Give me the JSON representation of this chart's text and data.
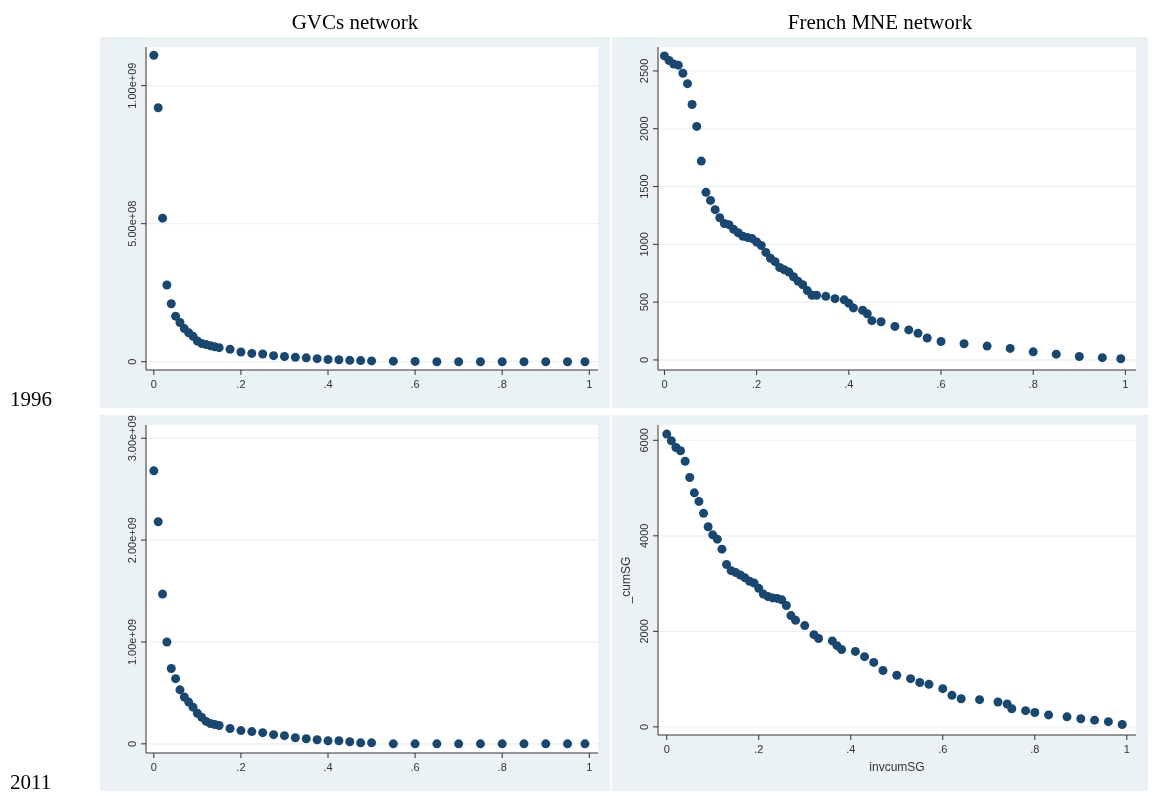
{
  "chart_data": [
    {
      "type": "scatter",
      "title": "GVCs network",
      "annotations": [
        "1996"
      ],
      "color": "#1a476f",
      "marker": "circle",
      "grid": "y",
      "xlim": [
        -0.018,
        1.02
      ],
      "ylim": [
        -30000000,
        1140000000
      ],
      "xticks": [
        {
          "value": 0,
          "label": "0"
        },
        {
          "value": 0.2,
          "label": ".2"
        },
        {
          "value": 0.4,
          "label": ".4"
        },
        {
          "value": 0.6,
          "label": ".6"
        },
        {
          "value": 0.8,
          "label": ".8"
        },
        {
          "value": 1,
          "label": "1"
        }
      ],
      "yticks": [
        {
          "value": 0,
          "label": "0"
        },
        {
          "value": 500000000,
          "label": "5.00e+08"
        },
        {
          "value": 1000000000,
          "label": "1.00e+09"
        }
      ],
      "x": [
        0,
        0.01,
        0.02,
        0.03,
        0.04,
        0.05,
        0.06,
        0.07,
        0.08,
        0.09,
        0.1,
        0.11,
        0.12,
        0.13,
        0.14,
        0.15,
        0.175,
        0.2,
        0.225,
        0.25,
        0.275,
        0.3,
        0.325,
        0.35,
        0.375,
        0.4,
        0.425,
        0.45,
        0.475,
        0.5,
        0.55,
        0.6,
        0.65,
        0.7,
        0.75,
        0.8,
        0.85,
        0.9,
        0.95,
        0.99
      ],
      "values": [
        1110000000,
        920000000,
        520000000,
        278000000,
        210000000,
        165000000,
        142000000,
        120000000,
        105000000,
        92000000,
        75000000,
        66000000,
        62000000,
        58000000,
        54000000,
        51000000,
        45000000,
        35000000,
        30000000,
        28000000,
        22000000,
        19000000,
        16000000,
        14000000,
        11000000,
        8000000,
        7000000,
        5000000,
        4000000,
        3000000,
        2000000,
        1000000,
        0,
        0,
        0,
        0,
        0,
        0,
        0,
        0
      ]
    },
    {
      "type": "scatter",
      "title": "French MNE network",
      "color": "#1a476f",
      "marker": "circle",
      "grid": "y",
      "xlim": [
        -0.014,
        1.023
      ],
      "ylim": [
        -87,
        2707
      ],
      "xticks": [
        {
          "value": 0,
          "label": "0"
        },
        {
          "value": 0.2,
          "label": ".2"
        },
        {
          "value": 0.4,
          "label": ".4"
        },
        {
          "value": 0.6,
          "label": ".6"
        },
        {
          "value": 0.8,
          "label": ".8"
        },
        {
          "value": 1,
          "label": "1"
        }
      ],
      "yticks": [
        {
          "value": 0,
          "label": "0"
        },
        500,
        1000,
        1500,
        2000,
        2500
      ],
      "x": [
        0,
        0.01,
        0.02,
        0.03,
        0.04,
        0.05,
        0.06,
        0.07,
        0.08,
        0.09,
        0.1,
        0.11,
        0.12,
        0.13,
        0.14,
        0.15,
        0.16,
        0.17,
        0.18,
        0.19,
        0.2,
        0.21,
        0.22,
        0.23,
        0.24,
        0.25,
        0.26,
        0.27,
        0.28,
        0.29,
        0.3,
        0.31,
        0.32,
        0.33,
        0.35,
        0.37,
        0.39,
        0.4,
        0.41,
        0.43,
        0.44,
        0.45,
        0.47,
        0.5,
        0.53,
        0.55,
        0.57,
        0.6,
        0.65,
        0.7,
        0.75,
        0.8,
        0.85,
        0.9,
        0.95,
        0.99
      ],
      "values": [
        2630,
        2590,
        2560,
        2550,
        2480,
        2390,
        2210,
        2020,
        1720,
        1450,
        1380,
        1300,
        1230,
        1180,
        1170,
        1130,
        1100,
        1070,
        1060,
        1050,
        1020,
        990,
        930,
        880,
        850,
        800,
        780,
        760,
        720,
        680,
        650,
        600,
        560,
        560,
        550,
        530,
        520,
        490,
        450,
        430,
        400,
        340,
        330,
        290,
        260,
        230,
        190,
        160,
        140,
        120,
        100,
        70,
        50,
        30,
        20,
        10
      ]
    },
    {
      "type": "scatter",
      "annotations": [
        "2011"
      ],
      "color": "#1a476f",
      "marker": "circle",
      "grid": "y",
      "xlim": [
        -0.018,
        1.02
      ],
      "ylim": [
        -90000000,
        3130000000
      ],
      "xticks": [
        {
          "value": 0,
          "label": "0"
        },
        {
          "value": 0.2,
          "label": ".2"
        },
        {
          "value": 0.4,
          "label": ".4"
        },
        {
          "value": 0.6,
          "label": ".6"
        },
        {
          "value": 0.8,
          "label": ".8"
        },
        {
          "value": 1,
          "label": "1"
        }
      ],
      "yticks": [
        {
          "value": 0,
          "label": "0"
        },
        {
          "value": 1000000000,
          "label": "1.00e+09"
        },
        {
          "value": 2000000000,
          "label": "2.00e+09"
        },
        {
          "value": 3000000000,
          "label": "3.00e+09"
        }
      ],
      "x": [
        0,
        0.01,
        0.02,
        0.03,
        0.04,
        0.05,
        0.06,
        0.07,
        0.08,
        0.09,
        0.1,
        0.11,
        0.12,
        0.13,
        0.14,
        0.15,
        0.175,
        0.2,
        0.225,
        0.25,
        0.275,
        0.3,
        0.325,
        0.35,
        0.375,
        0.4,
        0.425,
        0.45,
        0.475,
        0.5,
        0.55,
        0.6,
        0.65,
        0.7,
        0.75,
        0.8,
        0.85,
        0.9,
        0.95,
        0.99
      ],
      "values": [
        2680000000,
        2180000000,
        1470000000,
        1000000000,
        740000000,
        640000000,
        530000000,
        460000000,
        410000000,
        360000000,
        300000000,
        260000000,
        220000000,
        200000000,
        190000000,
        180000000,
        150000000,
        130000000,
        120000000,
        110000000,
        90000000,
        80000000,
        60000000,
        50000000,
        40000000,
        30000000,
        30000000,
        20000000,
        10000000,
        10000000,
        0,
        0,
        0,
        0,
        0,
        0,
        0,
        0,
        0,
        0
      ]
    },
    {
      "type": "scatter",
      "xlabel": "invcumSG",
      "ylabel": "_cumSG",
      "color": "#1a476f",
      "marker": "circle",
      "grid": "y",
      "xlim": [
        -0.019,
        1.02
      ],
      "ylim": [
        -170,
        6320
      ],
      "xticks": [
        {
          "value": 0,
          "label": "0"
        },
        {
          "value": 0.2,
          "label": ".2"
        },
        {
          "value": 0.4,
          "label": ".4"
        },
        {
          "value": 0.6,
          "label": ".6"
        },
        {
          "value": 0.8,
          "label": ".8"
        },
        {
          "value": 1,
          "label": "1"
        }
      ],
      "yticks": [
        {
          "value": 0,
          "label": "0"
        },
        2000,
        4000,
        6000
      ],
      "x": [
        0,
        0.01,
        0.02,
        0.03,
        0.04,
        0.05,
        0.06,
        0.07,
        0.08,
        0.09,
        0.1,
        0.11,
        0.12,
        0.13,
        0.14,
        0.15,
        0.16,
        0.17,
        0.18,
        0.19,
        0.2,
        0.21,
        0.22,
        0.23,
        0.24,
        0.25,
        0.26,
        0.27,
        0.28,
        0.3,
        0.32,
        0.33,
        0.36,
        0.37,
        0.38,
        0.41,
        0.43,
        0.45,
        0.47,
        0.5,
        0.53,
        0.55,
        0.57,
        0.6,
        0.62,
        0.64,
        0.68,
        0.72,
        0.74,
        0.75,
        0.78,
        0.8,
        0.83,
        0.87,
        0.9,
        0.93,
        0.96,
        0.99
      ],
      "values": [
        6130,
        5990,
        5850,
        5780,
        5560,
        5220,
        4900,
        4720,
        4470,
        4190,
        4020,
        3930,
        3720,
        3400,
        3270,
        3230,
        3180,
        3120,
        3050,
        3010,
        2900,
        2780,
        2730,
        2700,
        2690,
        2660,
        2540,
        2330,
        2230,
        2120,
        1930,
        1850,
        1800,
        1700,
        1620,
        1580,
        1470,
        1350,
        1180,
        1080,
        1010,
        930,
        890,
        800,
        660,
        590,
        570,
        520,
        480,
        380,
        340,
        300,
        250,
        210,
        170,
        140,
        110,
        50
      ]
    }
  ]
}
